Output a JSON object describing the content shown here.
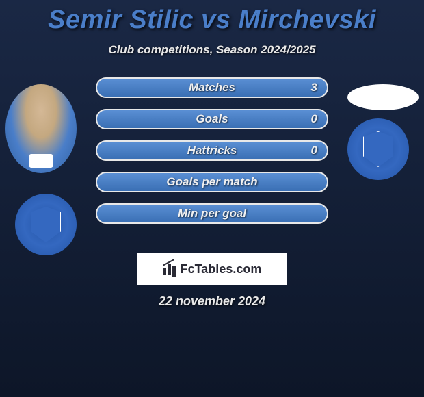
{
  "header": {
    "title": "Semir Stilic vs Mirchevski",
    "subtitle": "Club competitions, Season 2024/2025"
  },
  "stats": [
    {
      "label": "Matches",
      "value": "3"
    },
    {
      "label": "Goals",
      "value": "0"
    },
    {
      "label": "Hattricks",
      "value": "0"
    },
    {
      "label": "Goals per match",
      "value": ""
    },
    {
      "label": "Min per goal",
      "value": ""
    }
  ],
  "brand": {
    "text": "FcTables.com"
  },
  "date": "22 november 2024",
  "colors": {
    "title": "#4a7ec9",
    "pill_gradient_top": "#5a8fd4",
    "pill_gradient_bottom": "#3a6fb4",
    "pill_border": "#e8e8e8",
    "bg_top": "#1a2845",
    "bg_bottom": "#0d1628",
    "text_light": "#e8e8e8",
    "brand_box_bg": "#ffffff",
    "brand_text": "#2a2a35"
  }
}
